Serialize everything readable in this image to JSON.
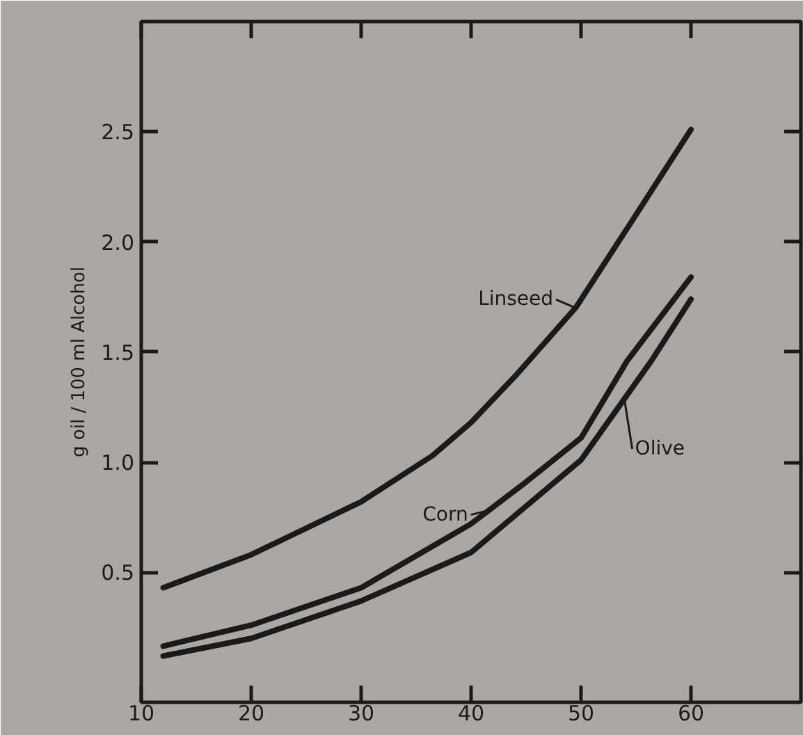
{
  "chart_data": {
    "type": "line",
    "ylabel": "g oil / 100 ml Alcohol",
    "xlim": [
      10,
      70
    ],
    "ylim": [
      -0.09,
      3.0
    ],
    "xticks": [
      10,
      20,
      30,
      40,
      50,
      60
    ],
    "yticks": [
      0.5,
      {
        "value": 1,
        "label": "1.0"
      },
      1.5,
      {
        "value": 2,
        "label": "2.0"
      },
      2.5
    ],
    "grid": false,
    "marker": "none",
    "line_style": "solid",
    "series": [
      {
        "color": "#1a1a1a",
        "x": [
          12,
          20,
          30,
          36.5,
          40,
          44,
          49.5,
          54.7,
          60
        ],
        "values": [
          0.43,
          0.58,
          0.82,
          1.03,
          1.18,
          1.39,
          1.7,
          2.1,
          2.51
        ]
      },
      {
        "color": "#1a1a1a",
        "x": [
          12,
          20,
          30,
          40,
          45,
          50,
          54.2,
          60
        ],
        "values": [
          0.165,
          0.26,
          0.43,
          0.72,
          0.91,
          1.11,
          1.46,
          1.84
        ]
      },
      {
        "color": "#1a1a1a",
        "x": [
          12,
          20,
          30,
          40,
          45,
          50,
          56.4,
          60
        ],
        "values": [
          0.12,
          0.2,
          0.37,
          0.59,
          0.8,
          1.01,
          1.46,
          1.74
        ]
      }
    ],
    "annotations": [
      {
        "text": "Linseed",
        "x": 49.5,
        "y": 1.7
      },
      {
        "text": "Corn",
        "x": 41.5,
        "y": 0.78
      },
      {
        "text": "Olive",
        "x": 53.9,
        "y": 1.3
      }
    ]
  }
}
